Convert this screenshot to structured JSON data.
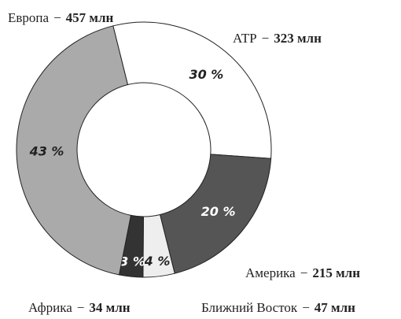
{
  "chart_data": {
    "type": "pie",
    "donut": true,
    "categories": [
      "АТР",
      "Америка",
      "Ближний Восток",
      "Африка",
      "Европа"
    ],
    "separator": "−",
    "amount_labels": [
      "323 млн",
      "215 млн",
      "47 млн",
      "34 млн",
      "457 млн"
    ],
    "values": [
      30,
      20,
      4,
      3,
      43
    ],
    "value_labels": [
      "30 %",
      "20 %",
      "4 %",
      "3 %",
      "43 %"
    ],
    "colors": [
      "#ffffff",
      "#555555",
      "#eeeeee",
      "#333333",
      "#aaaaaa"
    ],
    "label_colors": [
      "#222222",
      "#ffffff",
      "#222222",
      "#ffffff",
      "#222222"
    ]
  }
}
